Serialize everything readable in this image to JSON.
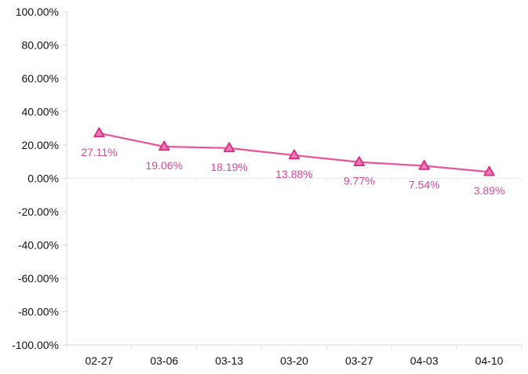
{
  "chart_data": {
    "type": "line",
    "title": "",
    "xlabel": "",
    "ylabel": "",
    "categories": [
      "02-27",
      "03-06",
      "03-13",
      "03-20",
      "03-27",
      "04-03",
      "04-10"
    ],
    "series": [
      {
        "values": [
          27.11,
          19.06,
          18.19,
          13.88,
          9.77,
          7.54,
          3.89
        ],
        "labels": [
          "27.11%",
          "19.06%",
          "18.19%",
          "13.88%",
          "9.77%",
          "7.54%",
          "3.89%"
        ],
        "color": "#e8559b",
        "marker": "triangle"
      }
    ],
    "ylim": [
      -100,
      100
    ],
    "y_ticks": [
      100,
      80,
      60,
      40,
      20,
      0,
      -20,
      -40,
      -60,
      -80,
      -100
    ],
    "y_tick_labels": [
      "100.00%",
      "80.00%",
      "60.00%",
      "40.00%",
      "20.00%",
      "0.00%",
      "-20.00%",
      "-40.00%",
      "-60.00%",
      "-80.00%",
      "-100.00%"
    ],
    "grid": false,
    "legend": "none",
    "colors": {
      "line": "#e8559b",
      "marker_fill": "#f07ab6",
      "marker_stroke": "#d63384",
      "label": "#d9479a",
      "axis": "#d9d9d9",
      "text": "#111111"
    }
  }
}
